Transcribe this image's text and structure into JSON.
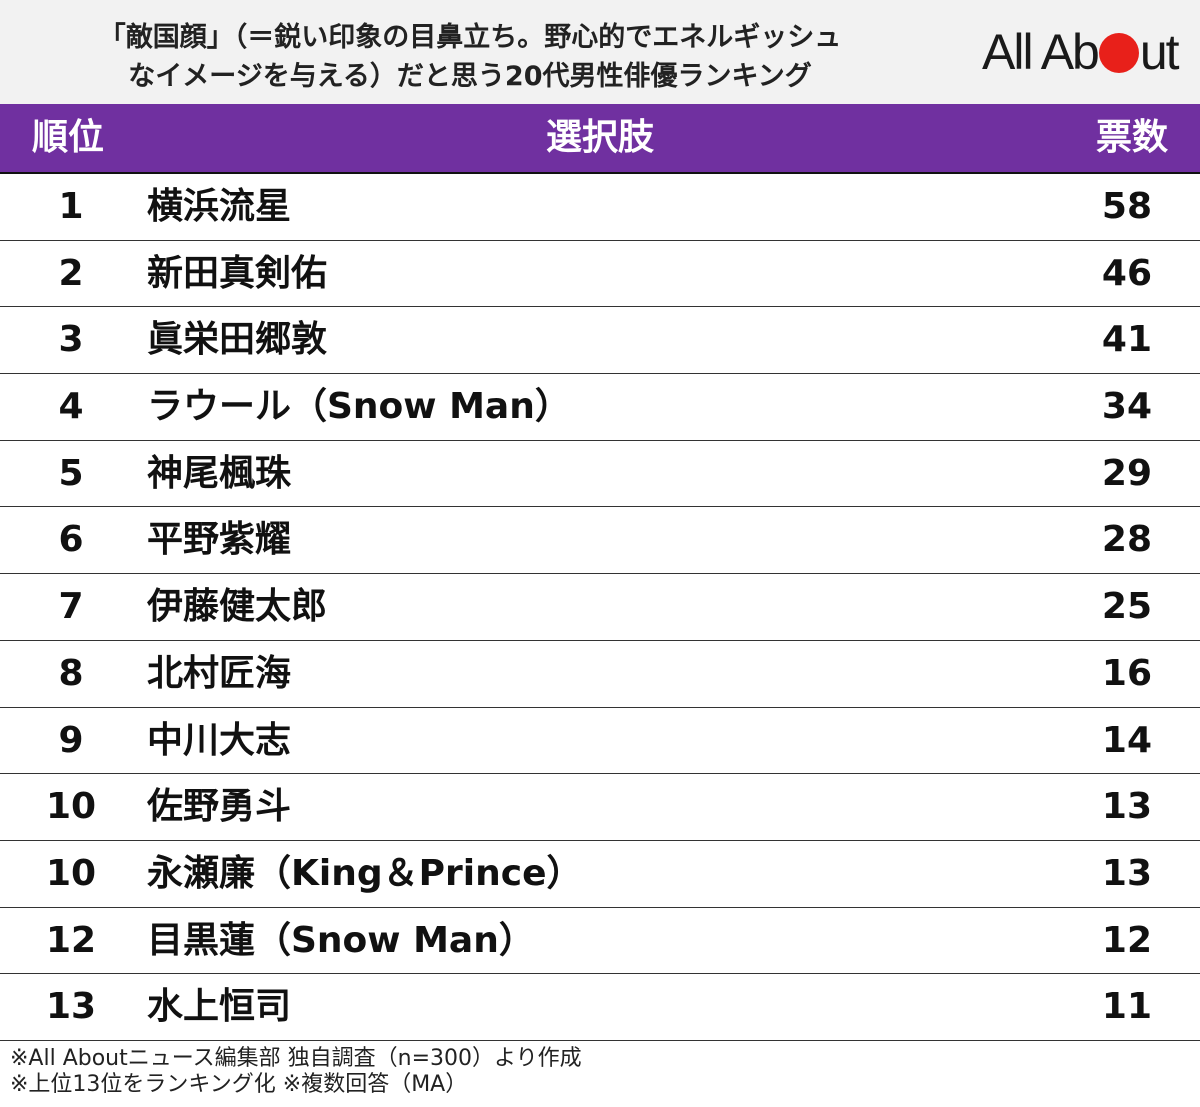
{
  "header": {
    "title_line1": "「敵国顔」（＝鋭い印象の目鼻立ち。野心的でエネルギッシュ",
    "title_line2": "なイメージを与える）だと思う20代男性俳優ランキング",
    "logo_left": "All Ab",
    "logo_right": "ut",
    "logo_dot_color": "#e8201a"
  },
  "colors": {
    "header_band": "#7030a0",
    "header_bg": "#f2f2f2"
  },
  "chart_data": {
    "type": "table",
    "columns": [
      "順位",
      "選択肢",
      "票数"
    ],
    "rows": [
      {
        "rank": "1",
        "name": "横浜流星",
        "votes": "58"
      },
      {
        "rank": "2",
        "name": "新田真剣佑",
        "votes": "46"
      },
      {
        "rank": "3",
        "name": "眞栄田郷敦",
        "votes": "41"
      },
      {
        "rank": "4",
        "name": "ラウール（Snow Man）",
        "votes": "34"
      },
      {
        "rank": "5",
        "name": "神尾楓珠",
        "votes": "29"
      },
      {
        "rank": "6",
        "name": "平野紫耀",
        "votes": "28"
      },
      {
        "rank": "7",
        "name": "伊藤健太郎",
        "votes": "25"
      },
      {
        "rank": "8",
        "name": "北村匠海",
        "votes": "16"
      },
      {
        "rank": "9",
        "name": "中川大志",
        "votes": "14"
      },
      {
        "rank": "10",
        "name": "佐野勇斗",
        "votes": "13"
      },
      {
        "rank": "10",
        "name": "永瀬廉（King＆Prince）",
        "votes": "13"
      },
      {
        "rank": "12",
        "name": "目黒蓮（Snow Man）",
        "votes": "12"
      },
      {
        "rank": "13",
        "name": "水上恒司",
        "votes": "11"
      }
    ]
  },
  "footer": {
    "line1": "※All Aboutニュース編集部 独自調査（n=300）より作成",
    "line2": "※上位13位をランキング化 ※複数回答（MA）"
  }
}
